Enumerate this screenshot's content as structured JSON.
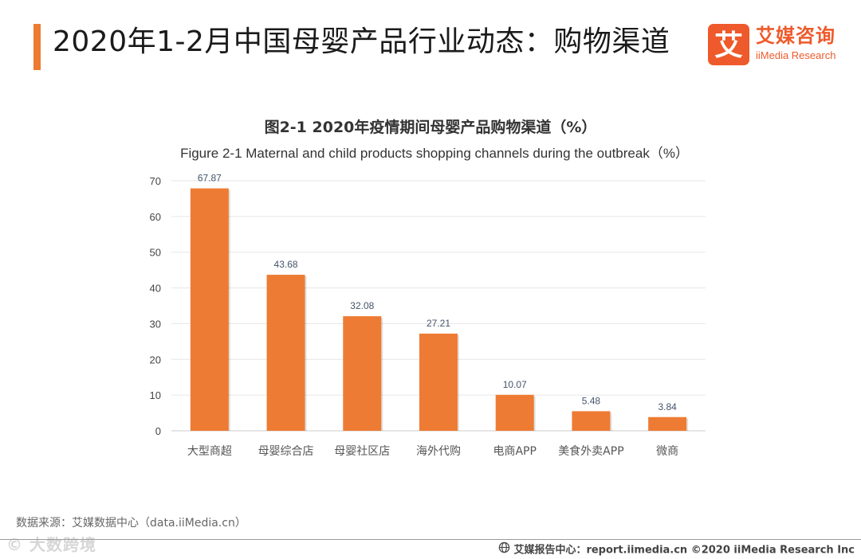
{
  "header": {
    "title": "2020年1-2月中国母婴产品行业动态：购物渠道",
    "logo_cn": "艾媒咨询",
    "logo_en": "iiMedia Research",
    "logo_mark": "艾"
  },
  "chart_data": {
    "type": "bar",
    "title": "图2-1 2020年疫情期间母婴产品购物渠道（%）",
    "subtitle": "Figure 2-1 Maternal and child products shopping channels during the outbreak（%）",
    "categories": [
      "大型商超",
      "母婴综合店",
      "母婴社区店",
      "海外代购",
      "电商APP",
      "美食外卖APP",
      "微商"
    ],
    "values": [
      67.87,
      43.68,
      32.08,
      27.21,
      10.07,
      5.48,
      3.84
    ],
    "value_labels": [
      "67.87",
      "43.68",
      "32.08",
      "27.21",
      "10.07",
      "5.48",
      "3.84"
    ],
    "yticks": [
      "0",
      "10",
      "20",
      "30",
      "40",
      "50",
      "60",
      "70"
    ],
    "ylim": [
      0,
      70
    ],
    "xlabel": "",
    "ylabel": "",
    "grid": true,
    "legend": "none"
  },
  "colors": {
    "accent": "#ee7b33",
    "bar": "#ee7b33",
    "brand": "#ee5a2b",
    "grid": "#e6e6e6"
  },
  "footer": {
    "source": "数据来源：艾媒数据中心（data.iiMedia.cn）",
    "watermark": "© 大数跨境",
    "report": "艾媒报告中心：report.iimedia.cn ©2020 iiMedia Research Inc",
    "icon": "globe-icon"
  }
}
